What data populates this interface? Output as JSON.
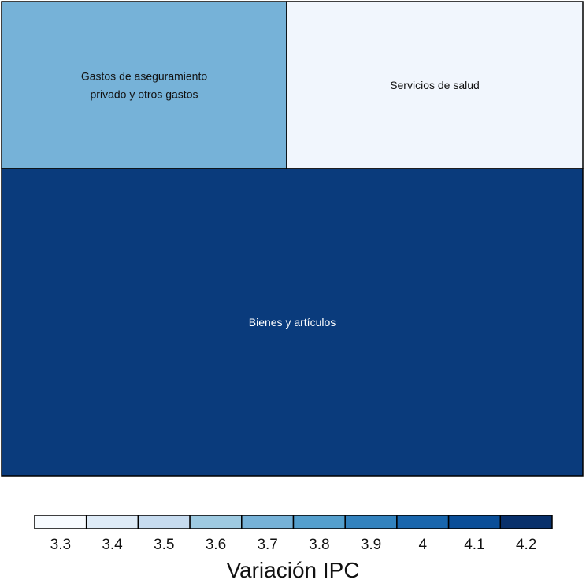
{
  "chart_data": {
    "type": "treemap",
    "items": [
      {
        "label_lines": [
          "Gastos de aseguramiento",
          "privado y otros gastos"
        ],
        "value": 3.7,
        "color": "#76b2d8"
      },
      {
        "label_lines": [
          "Servicios de salud"
        ],
        "value": 3.3,
        "color": "#f1f6fd"
      },
      {
        "label_lines": [
          "Bienes y artículos"
        ],
        "value": 4.2,
        "color": "#0a3b7c"
      }
    ],
    "legend": {
      "title": "Variación IPC",
      "ticks": [
        "3.3",
        "3.4",
        "3.5",
        "3.6",
        "3.7",
        "3.8",
        "3.9",
        "4",
        "4.1",
        "4.2"
      ],
      "colors": [
        "#f7fbff",
        "#deebf7",
        "#c6dbef",
        "#9ecae1",
        "#76b2d8",
        "#549fcd",
        "#3282be",
        "#1966ad",
        "#0a4e98",
        "#08306b"
      ]
    }
  }
}
